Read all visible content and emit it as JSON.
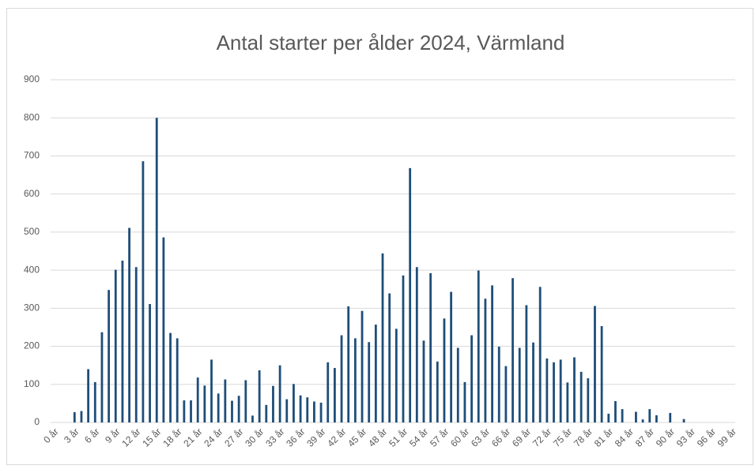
{
  "chart_data": {
    "type": "bar",
    "title": "Antal starter per ålder 2024, Värmland",
    "categories": [
      "0 år",
      null,
      null,
      "3 år",
      null,
      null,
      "6 år",
      null,
      null,
      "9 år",
      null,
      null,
      "12 år",
      null,
      null,
      "15 år",
      null,
      null,
      "18 år",
      null,
      null,
      "21 år",
      null,
      null,
      "24 år",
      null,
      null,
      "27 år",
      null,
      null,
      "30 år",
      null,
      null,
      "33 år",
      null,
      null,
      "36 år",
      null,
      null,
      "39 år",
      null,
      null,
      "42 år",
      null,
      null,
      "45 år",
      null,
      null,
      "48 år",
      null,
      null,
      "51 år",
      null,
      null,
      "54 år",
      null,
      null,
      "57 år",
      null,
      null,
      "60 år",
      null,
      null,
      "63 år",
      null,
      null,
      "66 år",
      null,
      null,
      "69 år",
      null,
      null,
      "72 år",
      null,
      null,
      "75 år",
      null,
      null,
      "78 år",
      null,
      null,
      "81 år",
      null,
      null,
      "84 år",
      null,
      null,
      "87 år",
      null,
      null,
      "90 år",
      null,
      null,
      "93 år",
      null,
      null,
      "96 år",
      null,
      null,
      "99 år"
    ],
    "values": [
      0,
      0,
      0,
      27,
      30,
      140,
      106,
      237,
      348,
      401,
      425,
      511,
      408,
      686,
      311,
      800,
      486,
      235,
      221,
      58,
      58,
      118,
      97,
      165,
      76,
      113,
      57,
      70,
      111,
      18,
      137,
      46,
      96,
      150,
      61,
      101,
      71,
      66,
      55,
      52,
      158,
      143,
      229,
      305,
      221,
      293,
      211,
      257,
      444,
      339,
      246,
      386,
      668,
      408,
      215,
      392,
      160,
      273,
      343,
      196,
      106,
      229,
      399,
      325,
      360,
      199,
      148,
      379,
      196,
      308,
      210,
      356,
      168,
      158,
      165,
      105,
      171,
      133,
      116,
      306,
      253,
      23,
      56,
      35,
      0,
      28,
      8,
      35,
      19,
      0,
      25,
      0,
      9,
      0,
      0,
      0,
      0,
      0,
      0,
      0
    ],
    "color": "#1f4e79",
    "ylim": [
      0,
      900
    ],
    "yticks": [
      0,
      100,
      200,
      300,
      400,
      500,
      600,
      700,
      800,
      900
    ],
    "grid": true
  }
}
